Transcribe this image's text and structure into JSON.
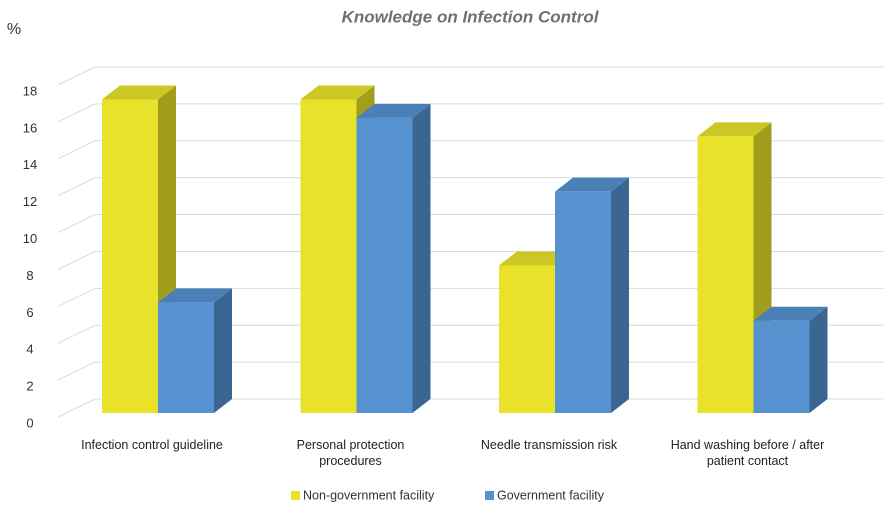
{
  "chart_data": {
    "type": "bar3d",
    "title": "Knowledge on Infection Control",
    "y_label": "%",
    "categories": [
      "Infection control guideline",
      "Personal protection procedures",
      "Needle transmission risk",
      "Hand washing before / after patient contact"
    ],
    "series": [
      {
        "name": "Non-government facility",
        "color": "#e8e22a",
        "values": [
          17,
          17,
          8,
          15
        ]
      },
      {
        "name": "Government facility",
        "color": "#5592cf",
        "values": [
          6,
          16,
          12,
          5
        ]
      }
    ],
    "ylim": [
      0,
      18
    ],
    "yticks": [
      0,
      2,
      4,
      6,
      8,
      10,
      12,
      14,
      16,
      18
    ],
    "grid": true,
    "legend": "bottom"
  }
}
